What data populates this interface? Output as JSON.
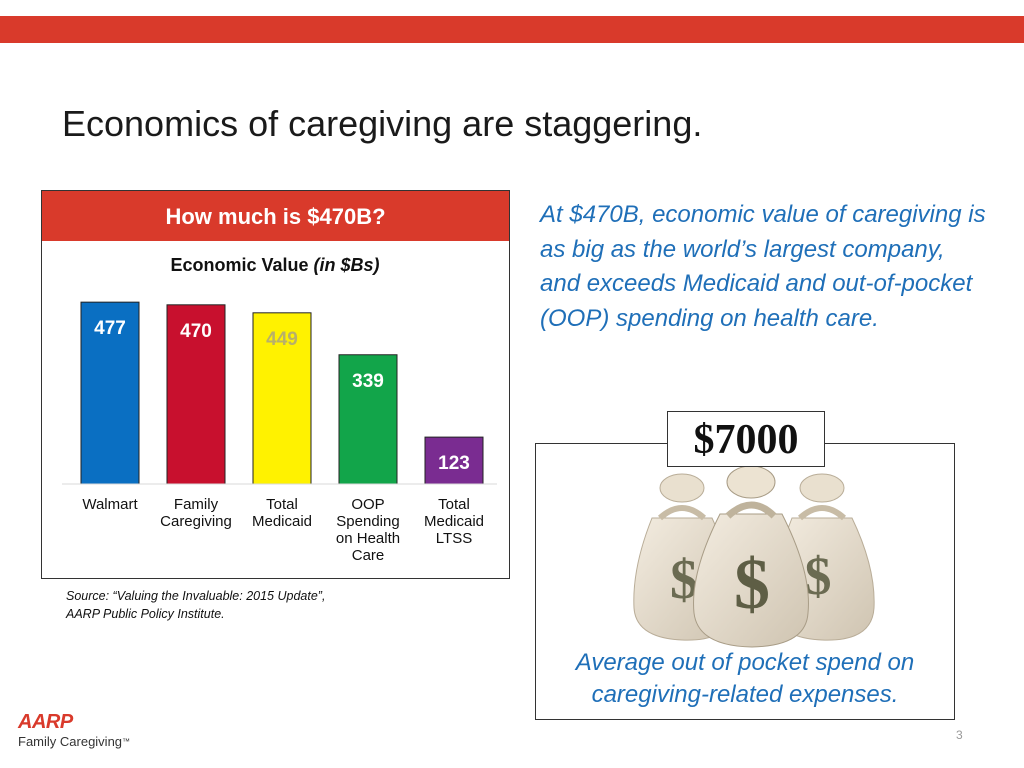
{
  "slide": {
    "title": "Economics of caregiving are staggering.",
    "page_number": "3"
  },
  "chart_box": {
    "header": "How much is $470B?"
  },
  "chart_data": {
    "type": "bar",
    "title": "Economic Value",
    "title_unit": "(in $Bs)",
    "categories": [
      [
        "Walmart"
      ],
      [
        "Family",
        "Caregiving"
      ],
      [
        "Total",
        "Medicaid"
      ],
      [
        "OOP",
        "Spending",
        "on Health",
        "Care"
      ],
      [
        "Total",
        "Medicaid",
        "LTSS"
      ]
    ],
    "values": [
      477,
      470,
      449,
      339,
      123
    ],
    "data_labels": [
      "477",
      "470",
      "449",
      "339",
      "123"
    ],
    "colors": [
      "#0a6fc2",
      "#c8102e",
      "#fff200",
      "#12a54a",
      "#7a2c91"
    ],
    "label_colors": [
      "#ffffff",
      "#ffffff",
      "#b8b06a",
      "#ffffff",
      "#ffffff"
    ],
    "ylim": [
      0,
      480
    ],
    "grid": false,
    "legend": "none"
  },
  "source": {
    "line1": "Source: “Valuing the Invaluable: 2015 Update”,",
    "line2": "AARP Public Policy Institute."
  },
  "right_panel": {
    "text": "At $470B, economic value of caregiving is as big as the world’s largest company, and exceeds Medicaid and out-of-pocket (OOP) spending on health care.",
    "amount": "$7000",
    "caption_line1": "Average out of pocket spend on",
    "caption_line2": "caregiving-related expenses.",
    "bag_symbol": "$"
  },
  "logo": {
    "brand": "AARP",
    "sub": "Family Caregiving",
    "tm": "™"
  }
}
